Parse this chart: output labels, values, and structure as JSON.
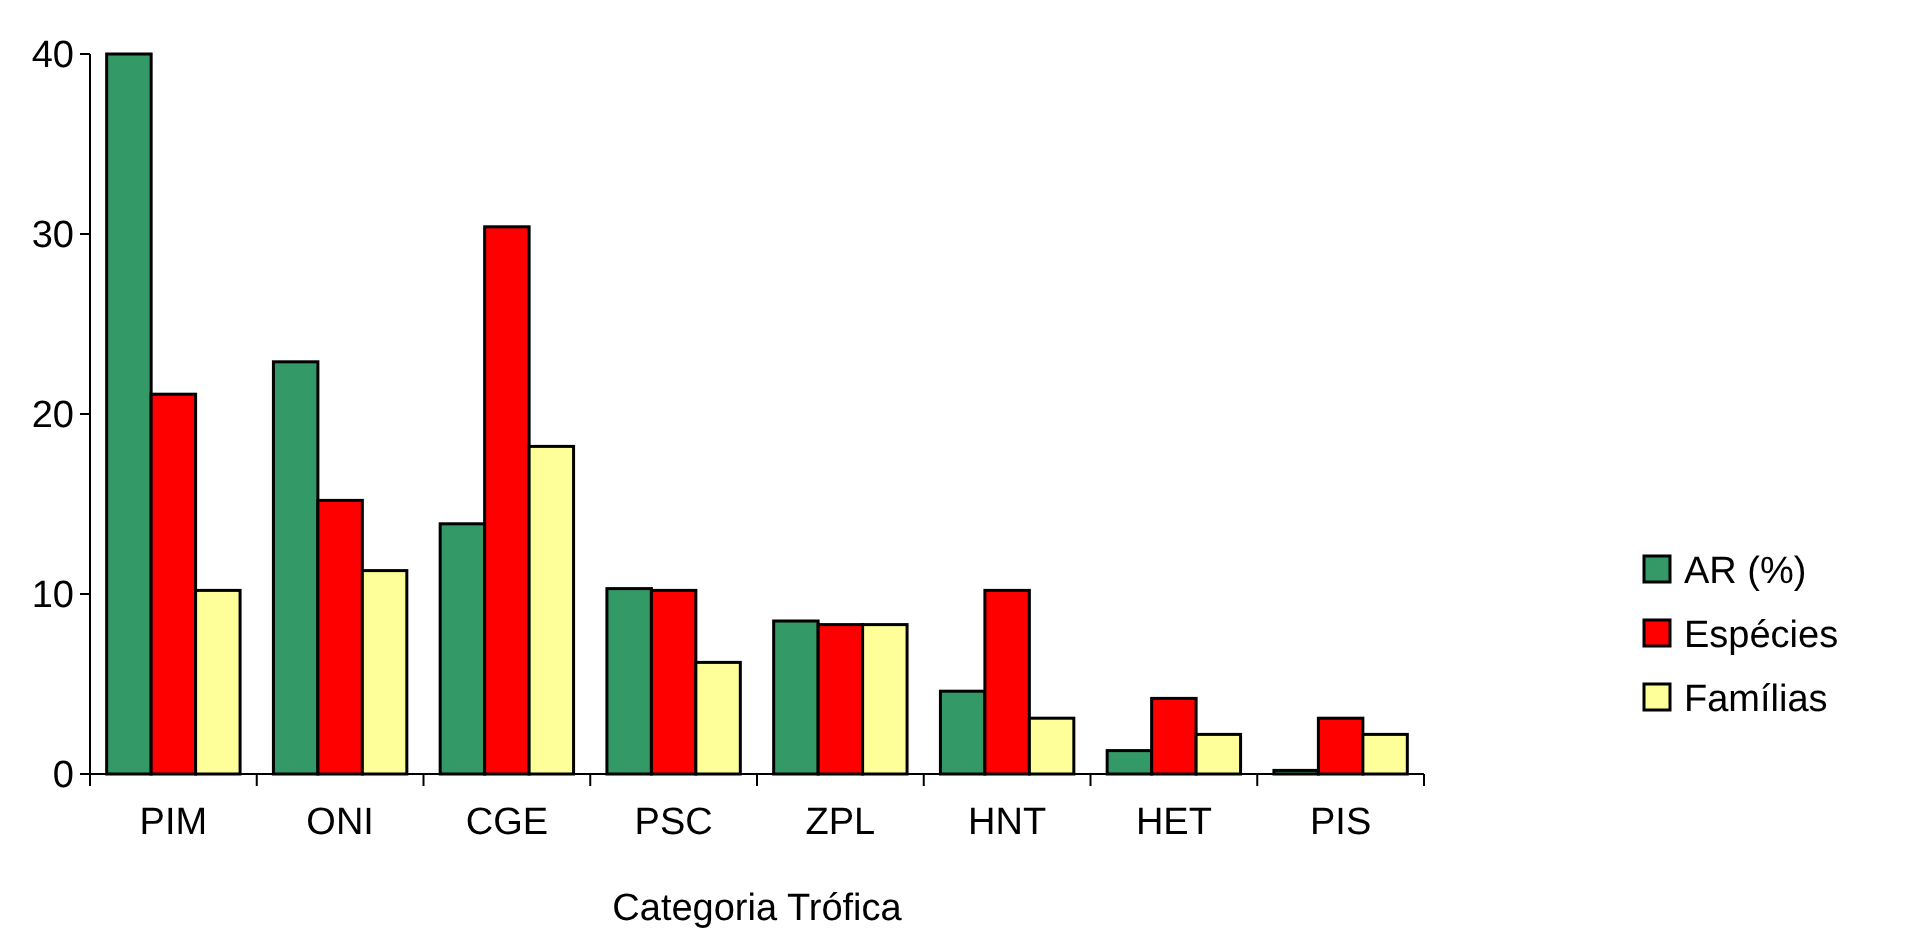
{
  "chart_data": {
    "type": "bar",
    "xlabel": "Categoria Trófica",
    "categories": [
      "PIM",
      "ONI",
      "CGE",
      "PSC",
      "ZPL",
      "HNT",
      "HET",
      "PIS"
    ],
    "series": [
      {
        "name": "AR (%)",
        "color": "#339966",
        "values": [
          40,
          22.9,
          13.9,
          10.3,
          8.5,
          4.6,
          1.3,
          0.2
        ]
      },
      {
        "name": "Espécies",
        "color": "#ff0000",
        "values": [
          21.1,
          15.2,
          30.4,
          10.2,
          8.3,
          10.2,
          4.2,
          3.1
        ]
      },
      {
        "name": "Famílias",
        "color": "#ffff99",
        "values": [
          10.2,
          11.3,
          18.2,
          6.2,
          8.3,
          3.1,
          2.2,
          2.2
        ]
      }
    ],
    "ylim": [
      0,
      40
    ],
    "yticks": [
      0,
      10,
      20,
      30,
      40
    ],
    "grid": false,
    "legend": "right"
  }
}
